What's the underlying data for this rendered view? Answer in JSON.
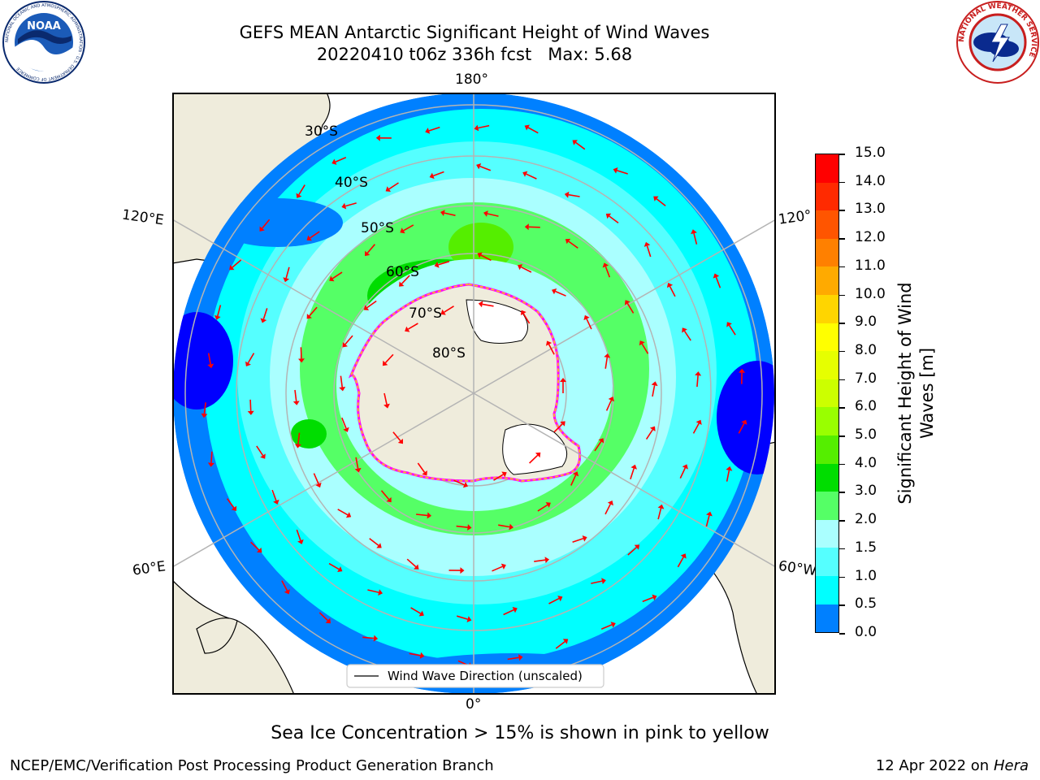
{
  "header": {
    "title_line1": "GEFS MEAN Antarctic Significant Height of Wind Waves",
    "title_line2": "20220410 t06z 336h fcst   Max: 5.68"
  },
  "logos": {
    "noaa": {
      "text": "NOAA",
      "ring_text": "NATIONAL OCEANIC AND ATMOSPHERIC ADMINISTRATION · U.S. DEPARTMENT OF COMMERCE"
    },
    "nws": {
      "ring_text": "NATIONAL WEATHER SERVICE"
    }
  },
  "map": {
    "longitude_labels": {
      "top": "180°",
      "bottom": "0°",
      "upper_left": "120°E",
      "lower_left": "60°E",
      "upper_right": "120°",
      "lower_right": "60°W"
    },
    "latitude_labels": [
      "30°S",
      "40°S",
      "50°S",
      "60°S",
      "70°S",
      "80°S"
    ],
    "legend_label": "Wind Wave Direction (unscaled)",
    "arrow_color": "#ff0000",
    "land_color": "#efecdc",
    "ice_color": "#ffffff"
  },
  "colorbar": {
    "label_line1": "Significant Height of Wind",
    "label_line2": "Waves [m]",
    "ticks": [
      "15.0",
      "14.0",
      "13.0",
      "12.0",
      "11.0",
      "10.0",
      "9.0",
      "8.0",
      "7.0",
      "6.0",
      "5.0",
      "4.0",
      "3.0",
      "2.0",
      "1.5",
      "1.0",
      "0.5",
      "0.0"
    ],
    "colors": [
      "#ff0000",
      "#ff2a00",
      "#ff5500",
      "#ff8000",
      "#ffaa00",
      "#ffd500",
      "#ffff00",
      "#e6ff00",
      "#ccff00",
      "#99ff00",
      "#55ee00",
      "#00dd00",
      "#55ff66",
      "#aaffff",
      "#55ffff",
      "#00ffff",
      "#0080ff",
      "#0000ff"
    ]
  },
  "footer": {
    "note": "Sea Ice Concentration > 15% is shown in pink to yellow",
    "credit": "NCEP/EMC/Verification Post Processing Product Generation Branch",
    "date": "12 Apr 2022 on",
    "host": "Hera"
  }
}
